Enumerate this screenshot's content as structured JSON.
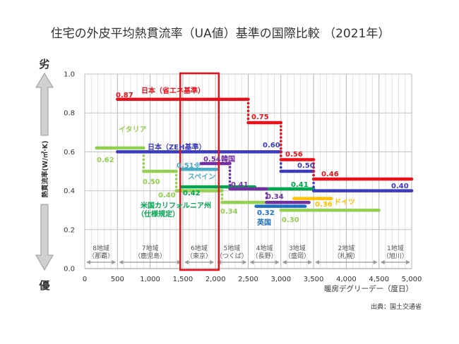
{
  "title": "住宅の外皮平均熱貫流率（UA値）基準の国際比較 （2021年）",
  "y_axis": {
    "label": "熱貫流率(W/㎡·K)",
    "worse": "劣",
    "better": "優"
  },
  "source": "出典：国土交通省",
  "chart_data": {
    "type": "line",
    "title": "住宅の外皮平均熱貫流率（UA値）基準の国際比較 （2021年）",
    "xlabel": "暖房デグリーデー（度日）",
    "ylabel": "熱貫流率(W/㎡·K)",
    "xlim": [
      0,
      5000
    ],
    "ylim": [
      0,
      1.0
    ],
    "grid": true,
    "xticks": [
      0,
      500,
      1000,
      1500,
      2000,
      2500,
      3000,
      3500,
      4000,
      4500,
      5000
    ],
    "xtick_labels": [
      "0",
      "500",
      "1,000",
      "1,500",
      "2,000",
      "2,500",
      "3,000",
      "3,500",
      "4,000",
      "4,500",
      "5,000"
    ],
    "yticks": [
      0,
      0.2,
      0.4,
      0.6,
      0.8,
      1.0
    ],
    "ytick_labels": [
      "0.0",
      "0.2",
      "0.4",
      "0.6",
      "0.8",
      "1.0"
    ],
    "series": [
      {
        "name": "イタリア",
        "color": "#92d050",
        "segments": [
          [
            180,
            900,
            0.62
          ],
          [
            900,
            1400,
            0.5
          ],
          [
            1400,
            2100,
            0.4
          ],
          [
            2100,
            3000,
            0.34
          ],
          [
            3000,
            4500,
            0.3
          ]
        ]
      },
      {
        "name": "スペイン",
        "color": "#4bacc6",
        "segments": [
          [
            1480,
            2020,
            0.51
          ]
        ]
      },
      {
        "name": "米国カリフォルニア州（仕様規定）",
        "color": "#00a550",
        "segments": [
          [
            1480,
            2600,
            0.42
          ],
          [
            2600,
            3500,
            0.41
          ]
        ]
      },
      {
        "name": "英国",
        "color": "#1f6fc0",
        "segments": [
          [
            2620,
            3370,
            0.32
          ]
        ]
      },
      {
        "name": "ドイツ",
        "color": "#ffc000",
        "segments": [
          [
            3200,
            3770,
            0.36
          ]
        ]
      },
      {
        "name": "韓国",
        "color": "#7030a0",
        "segments": [
          [
            1780,
            2220,
            0.54
          ],
          [
            2220,
            2780,
            0.41
          ],
          [
            2780,
            3430,
            0.34
          ]
        ]
      },
      {
        "name": "日本（ZEH基準）",
        "color": "#3b3bbf",
        "segments": [
          [
            500,
            3000,
            0.6
          ],
          [
            3000,
            3500,
            0.5
          ],
          [
            3500,
            5000,
            0.4
          ]
        ]
      },
      {
        "name": "日本（省エネ基準）",
        "color": "#e8101a",
        "segments": [
          [
            500,
            2500,
            0.87
          ],
          [
            2500,
            3000,
            0.75
          ],
          [
            3000,
            3500,
            0.56
          ],
          [
            3500,
            5000,
            0.46
          ]
        ]
      }
    ],
    "annotations": [
      {
        "text": "日本（省エネ基準）"
      },
      {
        "text": "0.87"
      },
      {
        "text": "0.75"
      },
      {
        "text": "0.56"
      },
      {
        "text": "0.46"
      },
      {
        "text": "日本（ZEH基準）"
      },
      {
        "text": "0.60"
      },
      {
        "text": "0.50"
      },
      {
        "text": "0.40"
      },
      {
        "text": "イタリア"
      },
      {
        "text": "0.62"
      },
      {
        "text": "0.50"
      },
      {
        "text": "0.40"
      },
      {
        "text": "0.34"
      },
      {
        "text": "0.30"
      },
      {
        "text": "0.51※"
      },
      {
        "text": "スペイン"
      },
      {
        "text": "0.54"
      },
      {
        "text": "韓国"
      },
      {
        "text": "0.41"
      },
      {
        "text": "0.34"
      },
      {
        "text": "0.42"
      },
      {
        "text": "米国カリフォルニア州"
      },
      {
        "text": "（仕様規定）"
      },
      {
        "text": "0.41"
      },
      {
        "text": "0.32"
      },
      {
        "text": "英国"
      },
      {
        "text": "0.36"
      },
      {
        "text": "ドイツ"
      }
    ],
    "regions": [
      {
        "name": "8地域",
        "city": "（那覇）",
        "from": 0,
        "to": 500
      },
      {
        "name": "7地域",
        "city": "（鹿児島）",
        "from": 500,
        "to": 1500
      },
      {
        "name": "6地域",
        "city": "（東京）",
        "from": 1500,
        "to": 2000
      },
      {
        "name": "5地域",
        "city": "（つくば）",
        "from": 2000,
        "to": 2500
      },
      {
        "name": "4地域",
        "city": "（長野）",
        "from": 2500,
        "to": 3000
      },
      {
        "name": "3地域",
        "city": "（盛岡）",
        "from": 3000,
        "to": 3500
      },
      {
        "name": "2地域",
        "city": "（札幌）",
        "from": 3500,
        "to": 4500
      },
      {
        "name": "1地域",
        "city": "（旭川）",
        "from": 4500,
        "to": 5000
      }
    ],
    "highlight": {
      "from": 1460,
      "to": 2050,
      "color": "#e8101a"
    }
  }
}
